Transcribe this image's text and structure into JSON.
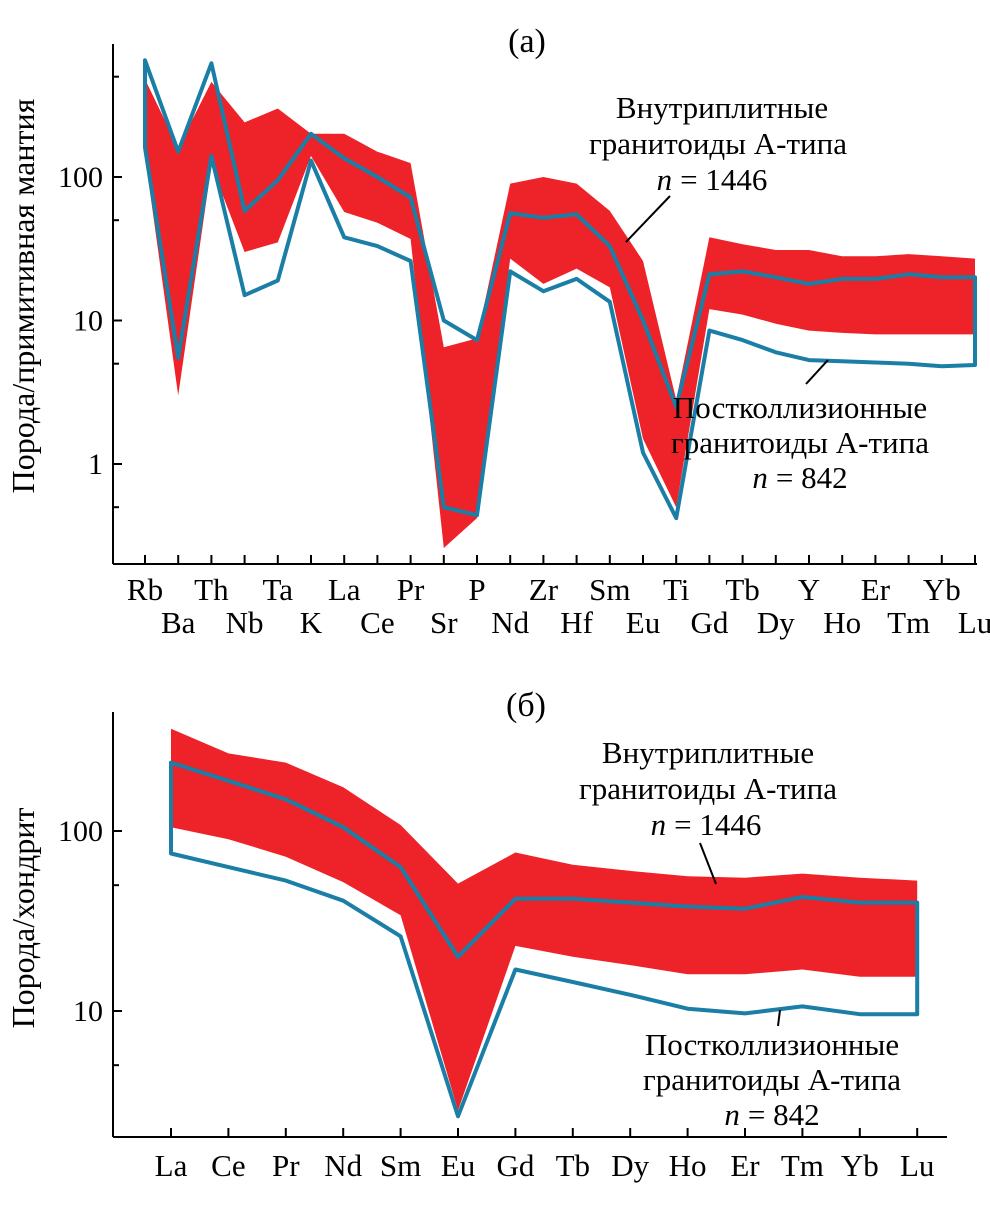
{
  "colors": {
    "band": "#ee2229",
    "line": "#1a7ea6",
    "axis": "#000000"
  },
  "chart_data": [
    {
      "type": "area",
      "title": "(а)",
      "ylabel": "Порода/примитивная мантия",
      "yscale": "log",
      "ylim": [
        0.2,
        1000
      ],
      "yticks": [
        1,
        10,
        100
      ],
      "ytick_labels": [
        "1",
        "10",
        "100"
      ],
      "categories": [
        "Rb",
        "Ba",
        "Th",
        "Nb",
        "Ta",
        "K",
        "La",
        "Ce",
        "Pr",
        "Sr",
        "P",
        "Nd",
        "Zr",
        "Hf",
        "Sm",
        "Eu",
        "Ti",
        "Gd",
        "Tb",
        "Dy",
        "Y",
        "Ho",
        "Er",
        "Tm",
        "Yb",
        "Lu"
      ],
      "band": {
        "name": "Внутриплитные гранитоиды А-типа",
        "upper": [
          480,
          160,
          460,
          240,
          300,
          200,
          200,
          150,
          125,
          6.5,
          7.5,
          90,
          100,
          90,
          58,
          26,
          2.8,
          38,
          34,
          31,
          31,
          28,
          28,
          29,
          28,
          27
        ],
        "lower": [
          140,
          3,
          120,
          30,
          35,
          140,
          57,
          48,
          37,
          0.26,
          0.42,
          27,
          18,
          23,
          17,
          1.5,
          0.5,
          12,
          11,
          9.5,
          8.5,
          8.2,
          8,
          8,
          8,
          8
        ]
      },
      "series": [
        {
          "name": "",
          "upper": [
            650,
            150,
            620,
            58,
            95,
            200,
            135,
            100,
            72,
            10,
            7.3,
            56,
            52,
            55,
            33,
            10,
            2.5,
            21,
            22,
            20,
            18,
            19.5,
            19.5,
            21,
            20,
            20
          ],
          "lower": [
            160,
            5.5,
            140,
            15,
            19,
            130,
            38,
            33,
            26,
            0.5,
            0.44,
            22,
            16,
            19.5,
            13.5,
            1.2,
            0.42,
            8.5,
            7.3,
            6,
            5.3,
            5.2,
            5.1,
            5,
            4.8,
            4.9
          ]
        }
      ],
      "annotations": [
        {
          "line1": "Внутриплитные",
          "line2": "гранитоиды А-типа",
          "n_label": "n",
          "n_value": "= 1446"
        },
        {
          "line1": "Постколлизионные",
          "line2": "гранитоиды А-типа",
          "n_label": "n",
          "n_value": "= 842"
        }
      ]
    },
    {
      "type": "area",
      "title": "(б)",
      "ylabel": "Порода/хондрит",
      "yscale": "log",
      "ylim": [
        2,
        400
      ],
      "yticks": [
        10,
        100
      ],
      "ytick_labels": [
        "10",
        "100"
      ],
      "categories": [
        "La",
        "Ce",
        "Pr",
        "Nd",
        "Sm",
        "Eu",
        "Gd",
        "Tb",
        "Dy",
        "Ho",
        "Er",
        "Tm",
        "Yb",
        "Lu"
      ],
      "band": {
        "name": "Внутриплитные гранитоиды А-типа",
        "upper": [
          370,
          270,
          240,
          175,
          108,
          51,
          76,
          65,
          60,
          56,
          55,
          58,
          55,
          53
        ],
        "lower": [
          105,
          90,
          72,
          52,
          34,
          2.8,
          23,
          20,
          18,
          16,
          16,
          17,
          15.5,
          15.5
        ]
      },
      "series": [
        {
          "name": "",
          "upper": [
            240,
            190,
            150,
            105,
            63,
            20,
            42,
            42,
            40,
            38,
            37,
            43,
            40,
            40
          ],
          "lower": [
            75,
            63,
            53,
            41,
            26,
            2.6,
            17,
            14.5,
            12.3,
            10.3,
            9.7,
            10.6,
            9.6,
            9.6
          ]
        }
      ],
      "annotations": [
        {
          "line1": "Внутриплитные",
          "line2": "гранитоиды А-типа",
          "n_label": "n",
          "n_value": "= 1446"
        },
        {
          "line1": "Постколлизионные",
          "line2": "гранитоиды А-типа",
          "n_label": "n",
          "n_value": "= 842"
        }
      ]
    }
  ]
}
